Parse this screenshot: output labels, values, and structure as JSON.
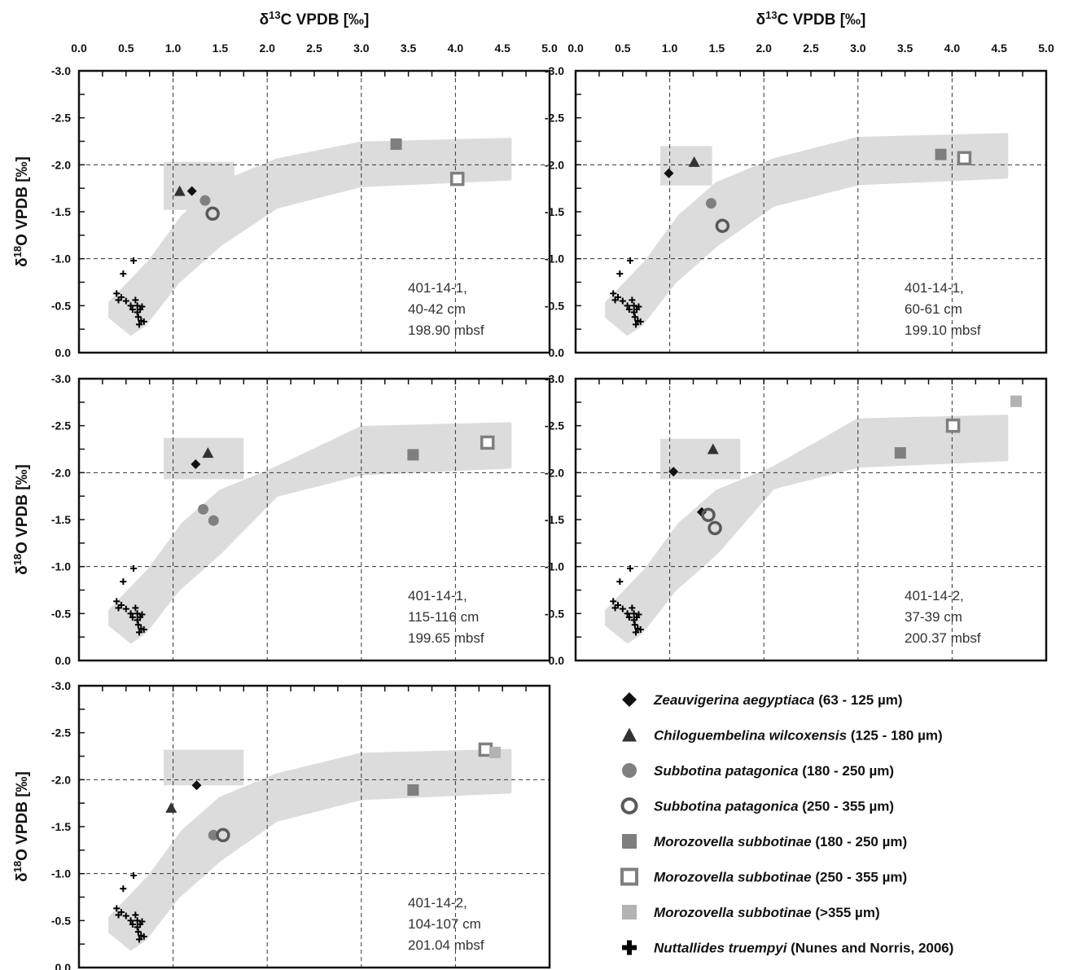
{
  "chart_data": {
    "type": "scatter",
    "x_axis_title": "δ13C VPDB [‰]",
    "y_axis_title": "δ18O VPDB [‰]",
    "xlim": [
      0.0,
      5.0
    ],
    "ylim": [
      0.0,
      -3.0
    ],
    "x_ticks": [
      "0.0",
      "0.5",
      "1.0",
      "1.5",
      "2.0",
      "2.5",
      "3.0",
      "3.5",
      "4.0",
      "4.5",
      "5.0"
    ],
    "y_ticks": [
      "-3.0",
      "-2.5",
      "-2.0",
      "-1.5",
      "-1.0",
      "-0.5",
      "0.0"
    ],
    "grid": "dashed at δ13C 1.0, 2.0, 3.0, 4.0 and δ18O -1.0, -2.0",
    "series": [
      {
        "key": "zeau",
        "name_italic": "Zeauvigerina aegyptiaca",
        "name_rest": " (63 - 125 µm)",
        "marker": "diamond",
        "color": "#111111"
      },
      {
        "key": "chil",
        "name_italic": "Chiloguembelina wilcoxensis",
        "name_rest": " (125 - 180 µm)",
        "marker": "triangle",
        "color": "#333333"
      },
      {
        "key": "subf",
        "name_italic": "Subbotina patagonica",
        "name_rest": " (180 - 250 µm)",
        "marker": "circle",
        "color": "#808080"
      },
      {
        "key": "subo",
        "name_italic": "Subbotina patagonica",
        "name_rest": " (250 - 355 µm)",
        "marker": "open-circle",
        "color": "#595959"
      },
      {
        "key": "mor1",
        "name_italic": "Morozovella subbotinae",
        "name_rest": " (180 - 250 µm)",
        "marker": "square",
        "color": "#7f7f7f"
      },
      {
        "key": "mor2",
        "name_italic": "Morozovella subbotinae",
        "name_rest": " (250 - 355 µm)",
        "marker": "open-square",
        "color": "#7f7f7f"
      },
      {
        "key": "mor3",
        "name_italic": "Morozovella subbotinae",
        "name_rest": " (>355 µm)",
        "marker": "square",
        "color": "#b3b3b3"
      },
      {
        "key": "nutt",
        "name_italic": "Nuttallides truempyi",
        "name_rest": " (Nunes and Norris, 2006)",
        "marker": "plus",
        "color": "#000000"
      }
    ],
    "panels": [
      {
        "label": [
          "401-14-1,",
          "40-42 cm",
          "198.90 mbsf"
        ],
        "points": {
          "zeau": [
            [
              1.2,
              -1.72
            ]
          ],
          "chil": [
            [
              1.07,
              -1.72
            ]
          ],
          "subf": [
            [
              1.34,
              -1.62
            ]
          ],
          "subo": [
            [
              1.42,
              -1.48
            ]
          ],
          "mor1": [
            [
              3.37,
              -2.22
            ]
          ],
          "mor2": [
            [
              4.02,
              -1.85
            ]
          ],
          "mor3": []
        }
      },
      {
        "label": [
          "401-14-1,",
          "60-61 cm",
          "199.10 mbsf"
        ],
        "points": {
          "zeau": [
            [
              0.99,
              -1.91
            ]
          ],
          "chil": [
            [
              1.26,
              -2.03
            ]
          ],
          "subf": [
            [
              1.44,
              -1.59
            ]
          ],
          "subo": [
            [
              1.56,
              -1.35
            ]
          ],
          "mor1": [
            [
              3.88,
              -2.11
            ]
          ],
          "mor2": [
            [
              4.13,
              -2.07
            ]
          ],
          "mor3": []
        }
      },
      {
        "label": [
          "401-14-1,",
          "115-116 cm",
          "199.65 mbsf"
        ],
        "points": {
          "zeau": [
            [
              1.24,
              -2.09
            ]
          ],
          "chil": [
            [
              1.37,
              -2.21
            ]
          ],
          "subf": [
            [
              1.32,
              -1.61
            ]
          ],
          "subo": [],
          "subf2": [
            [
              1.43,
              -1.49
            ]
          ],
          "mor1": [
            [
              3.55,
              -2.19
            ]
          ],
          "mor2": [
            [
              4.34,
              -2.32
            ]
          ],
          "mor3": []
        }
      },
      {
        "label": [
          "401-14-2,",
          "37-39 cm",
          "200.37 mbsf"
        ],
        "points": {
          "zeau": [
            [
              1.04,
              -2.01
            ],
            [
              1.34,
              -1.58
            ]
          ],
          "chil": [
            [
              1.46,
              -2.25
            ]
          ],
          "subf": [],
          "subo": [
            [
              1.41,
              -1.55
            ],
            [
              1.48,
              -1.41
            ]
          ],
          "mor1": [
            [
              3.45,
              -2.21
            ]
          ],
          "mor2": [
            [
              4.01,
              -2.5
            ]
          ],
          "mor3": [
            [
              4.68,
              -2.76
            ]
          ]
        }
      },
      {
        "label": [
          "401-14-2,",
          "104-107 cm",
          "201.04 mbsf"
        ],
        "points": {
          "zeau": [
            [
              1.25,
              -1.94
            ]
          ],
          "chil": [
            [
              0.98,
              -1.7
            ]
          ],
          "subf": [
            [
              1.43,
              -1.41
            ]
          ],
          "subo": [
            [
              1.53,
              -1.41
            ]
          ],
          "mor1": [
            [
              3.55,
              -1.89
            ]
          ],
          "mor2": [
            [
              4.32,
              -2.32
            ]
          ],
          "mor3": [
            [
              4.42,
              -2.29
            ]
          ]
        }
      }
    ],
    "nuttallides_points": [
      [
        0.47,
        -0.84
      ],
      [
        0.58,
        -0.98
      ],
      [
        0.4,
        -0.63
      ],
      [
        0.45,
        -0.59
      ],
      [
        0.5,
        -0.55
      ],
      [
        0.55,
        -0.5
      ],
      [
        0.42,
        -0.56
      ],
      [
        0.6,
        -0.56
      ],
      [
        0.62,
        -0.5
      ],
      [
        0.65,
        -0.46
      ],
      [
        0.57,
        -0.46
      ],
      [
        0.62,
        -0.43
      ],
      [
        0.67,
        -0.49
      ],
      [
        0.63,
        -0.38
      ],
      [
        0.66,
        -0.34
      ],
      [
        0.69,
        -0.33
      ],
      [
        0.64,
        -0.3
      ]
    ]
  }
}
